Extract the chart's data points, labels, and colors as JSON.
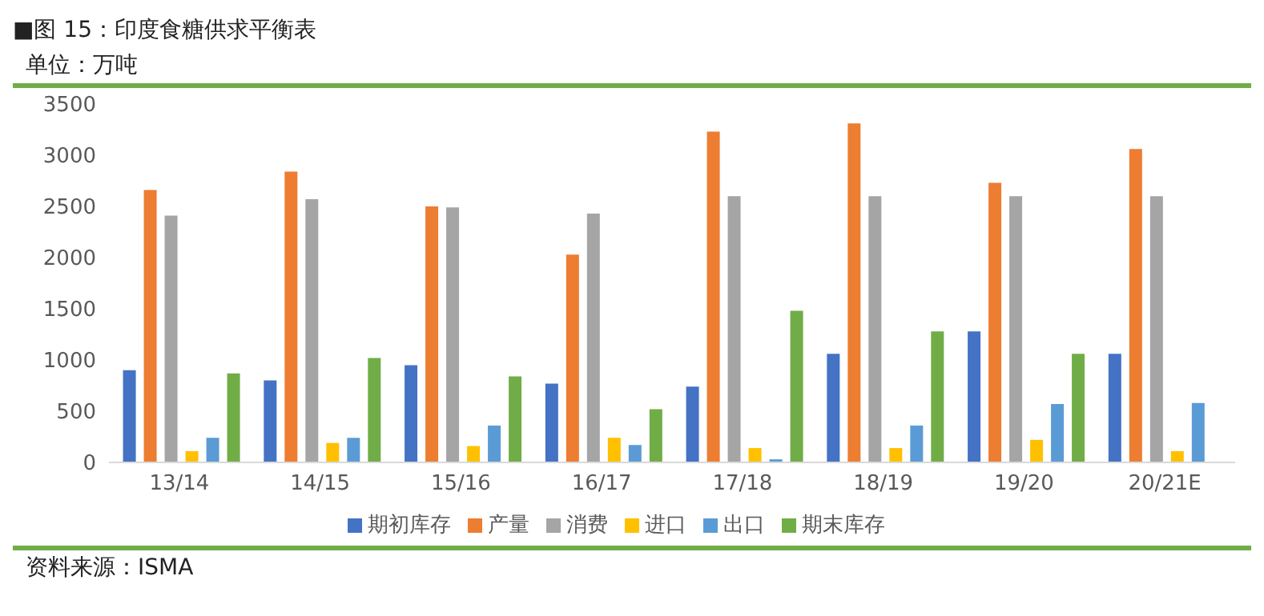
{
  "chart_data": {
    "type": "bar",
    "title": "■图 15：印度食糖供求平衡表",
    "subtitle": "单位：万吨",
    "annotations": [
      "资料来源：ISMA"
    ],
    "categories": [
      "13/14",
      "14/15",
      "15/16",
      "16/17",
      "17/18",
      "18/19",
      "19/20",
      "20/21E"
    ],
    "series": [
      {
        "name": "期初库存",
        "color": "#4472c4",
        "values": [
          900,
          800,
          950,
          770,
          740,
          1060,
          1280,
          1060
        ]
      },
      {
        "name": "产量",
        "color": "#ed7d31",
        "values": [
          2660,
          2840,
          2500,
          2030,
          3230,
          3310,
          2730,
          3060
        ]
      },
      {
        "name": "消费",
        "color": "#a5a5a5",
        "values": [
          2410,
          2570,
          2490,
          2430,
          2600,
          2600,
          2600,
          2600
        ]
      },
      {
        "name": "进口",
        "color": "#ffc000",
        "values": [
          110,
          190,
          160,
          240,
          140,
          140,
          220,
          110
        ]
      },
      {
        "name": "出口",
        "color": "#5b9bd5",
        "values": [
          240,
          240,
          360,
          170,
          30,
          360,
          570,
          580
        ]
      },
      {
        "name": "期末库存",
        "color": "#70ad47",
        "values": [
          870,
          1020,
          840,
          520,
          1480,
          1280,
          1060,
          null
        ]
      }
    ],
    "ylim": [
      0,
      3500
    ],
    "yticks": [
      0,
      500,
      1000,
      1500,
      2000,
      2500,
      3000,
      3500
    ],
    "grid": false,
    "legend": "bottom"
  }
}
